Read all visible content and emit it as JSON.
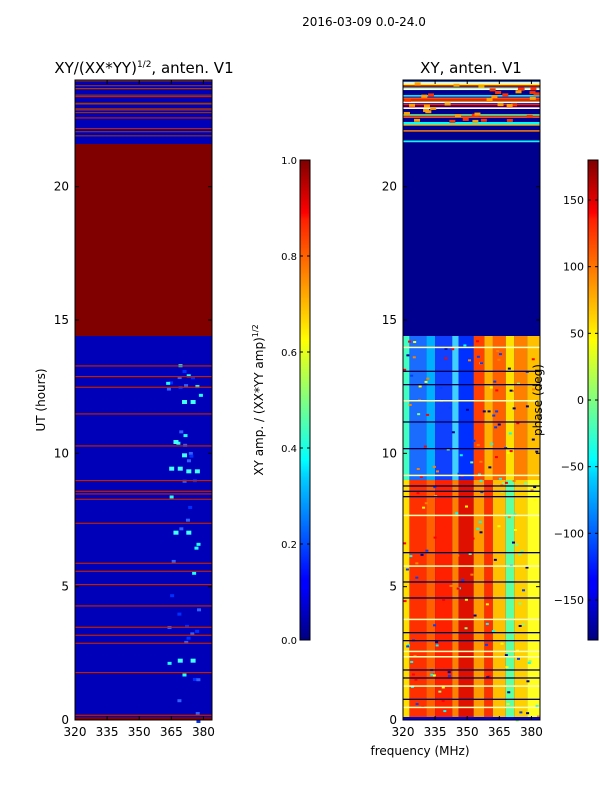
{
  "suptitle": "2016-03-09 0.0-24.0",
  "colors": {
    "deep_blue": "#00008f",
    "blue": "#0000ff",
    "dark_red": "#800000",
    "red": "#ff2000",
    "orange": "#ff9000",
    "yellow": "#ffff00",
    "cyan": "#20ffff",
    "white": "#ffffff"
  },
  "chart_data": [
    {
      "id": "ratio",
      "type": "heatmap",
      "title": "XY/(XX*YY)",
      "title_exp": "1/2",
      "title_suffix": ", anten. V1",
      "ylabel": "UT (hours)",
      "xlim": [
        320,
        384
      ],
      "ylim": [
        0,
        24
      ],
      "xticks": [
        "320",
        "335",
        "350",
        "365",
        "380"
      ],
      "xtick_values": [
        320,
        335,
        350,
        365,
        380
      ],
      "yticks": [
        "0",
        "5",
        "10",
        "15",
        "20"
      ],
      "ytick_values": [
        0,
        5,
        10,
        15,
        20
      ],
      "regions": [
        {
          "y": [
            21.6,
            14.4
          ],
          "value": 1.0,
          "desc": "saturated"
        },
        {
          "y": [
            0,
            14.4
          ],
          "value": 0.1,
          "desc": "low ratio"
        }
      ],
      "colorbar": {
        "label": "XY amp. / (XX*YY amp)",
        "label_exp": "1/2",
        "range": [
          0.0,
          1.0
        ],
        "ticks": [
          "0.0",
          "0.2",
          "0.4",
          "0.6",
          "0.8",
          "1.0"
        ],
        "tick_values": [
          0.0,
          0.2,
          0.4,
          0.6,
          0.8,
          1.0
        ],
        "colormap": "jet"
      }
    },
    {
      "id": "phase",
      "type": "heatmap",
      "title": "XY, anten. V1",
      "xlim": [
        320,
        384
      ],
      "ylim": [
        0,
        24
      ],
      "xticks": [
        "320",
        "335",
        "350",
        "365",
        "380"
      ],
      "xtick_values": [
        320,
        335,
        350,
        365,
        380
      ],
      "yticks": [
        "0",
        "5",
        "10",
        "15",
        "20"
      ],
      "ytick_values": [
        0,
        5,
        10,
        15,
        20
      ],
      "regions": [
        {
          "y": [
            14.4,
            21.6
          ],
          "value": -180,
          "desc": "no data"
        },
        {
          "y": [
            0,
            14.4
          ],
          "value": "mixed",
          "desc": "phase stripes"
        }
      ],
      "colorbar": {
        "label": "phase (deg)",
        "range": [
          -180,
          180
        ],
        "ticks": [
          "−150",
          "−100",
          "−50",
          "0",
          "50",
          "100",
          "150"
        ],
        "tick_values": [
          -150,
          -100,
          -50,
          0,
          50,
          100,
          150
        ],
        "colormap": "jet"
      }
    }
  ],
  "xlabel": "frequency (MHz)"
}
